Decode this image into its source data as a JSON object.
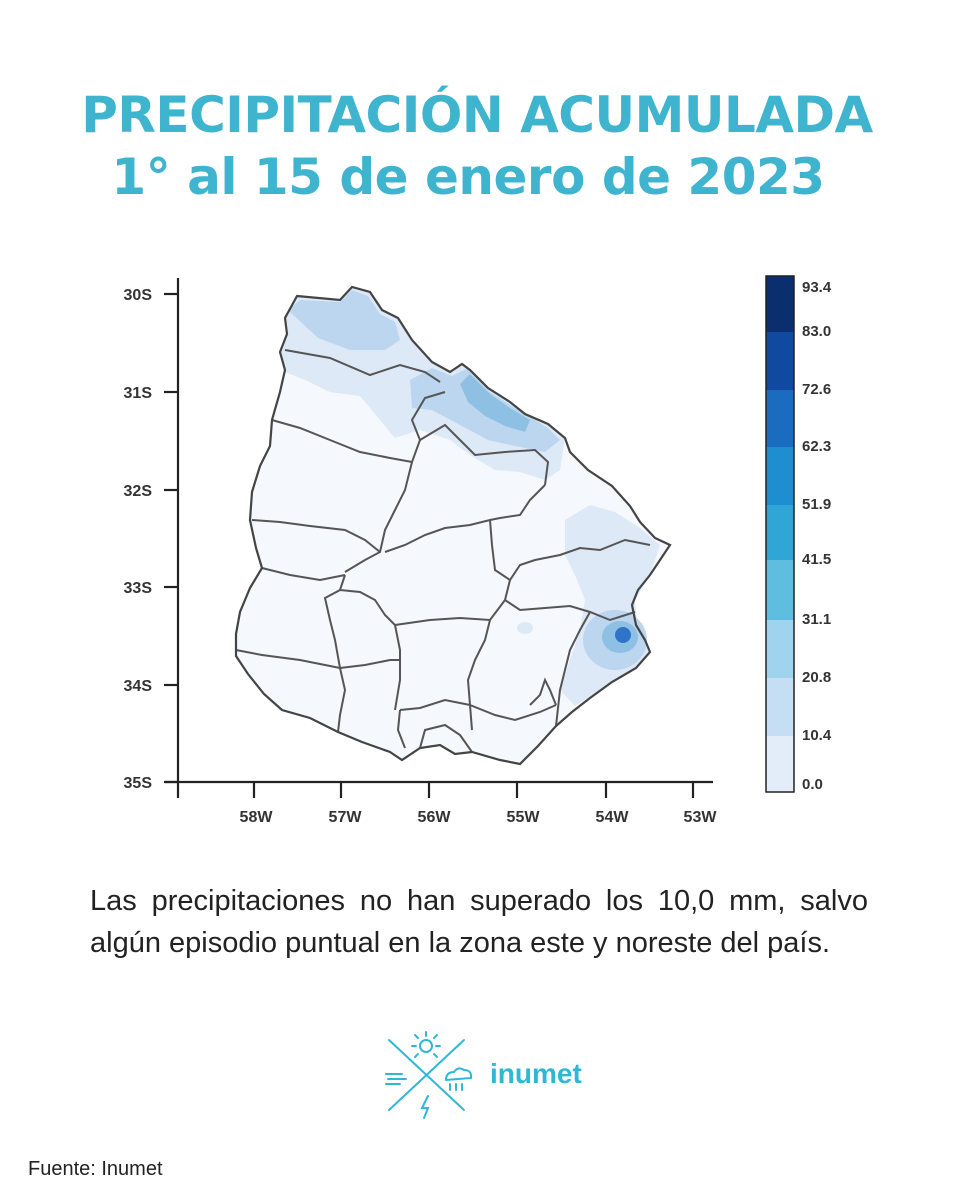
{
  "title_line1": "PRECIPITACIÓN ACUMULADA",
  "title_line2": "1° al 15 de enero de 2023",
  "map": {
    "lat_labels": [
      "30S",
      "31S",
      "32S",
      "33S",
      "34S",
      "35S"
    ],
    "lon_labels": [
      "58W",
      "57W",
      "56W",
      "55W",
      "54W",
      "53W"
    ],
    "colorbar": {
      "labels": [
        "93.4",
        "83.0",
        "72.6",
        "62.3",
        "51.9",
        "41.5",
        "31.1",
        "20.8",
        "10.4",
        "0.0"
      ],
      "colors": [
        "#0b2f6e",
        "#0f4aa0",
        "#1a6cc1",
        "#1f8ed0",
        "#2fa6d6",
        "#5fbde0",
        "#9fd3ee",
        "#c5def4",
        "#e3edf9",
        "#f8fbfe"
      ]
    },
    "colors": {
      "land": "#f5f8fd",
      "light": "#dde9f7",
      "medium": "#bcd6ef",
      "darker": "#8ec0e4",
      "dark": "#2f74c6",
      "border": "#444444"
    }
  },
  "caption": "Las precipitaciones no han superado los 10,0 mm, salvo algún episodio puntual en la zona este y noreste del país.",
  "logo": {
    "text": "inumet",
    "icon": "inumet-logo-icon",
    "color": "#2fb8d6"
  },
  "source": "Fuente: Inumet"
}
